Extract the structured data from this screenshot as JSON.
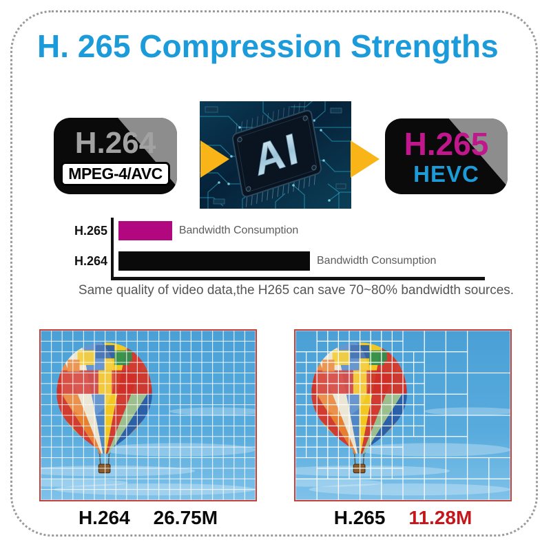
{
  "title": {
    "text": "H. 265 Compression Strengths",
    "color": "#1b9bd9"
  },
  "flow": {
    "h264_badge": {
      "line1": "H.264",
      "line2": "MPEG-4/AVC"
    },
    "h265_badge": {
      "line1": "H.265",
      "line2": "HEVC",
      "line1_color": "#c0188c",
      "line2_color": "#1d9bd8"
    },
    "chip_label": "AI",
    "arrow_color": "#f9b417"
  },
  "chart_data": {
    "type": "bar",
    "orientation": "horizontal",
    "title": "",
    "categories": [
      "H.265",
      "H.264"
    ],
    "values": [
      28,
      100
    ],
    "value_unit": "relative bandwidth (H.264 = 100)",
    "bar_labels": [
      "Bandwidth Consumption",
      "Bandwidth Consumption"
    ],
    "colors": [
      "#b1087f",
      "#0a0a0a"
    ],
    "xlim": [
      0,
      190
    ],
    "grid": false,
    "caption": "Same quality of video data,the H265 can save 70~80% bandwidth sources."
  },
  "comparison": {
    "left": {
      "codec": "H.264",
      "size": "26.75M",
      "size_color": "#0a0a0a",
      "grid": "uniform macroblocks"
    },
    "right": {
      "codec": "H.265",
      "size": "11.28M",
      "size_color": "#c4171c",
      "grid": "variable coding-tree units"
    }
  }
}
